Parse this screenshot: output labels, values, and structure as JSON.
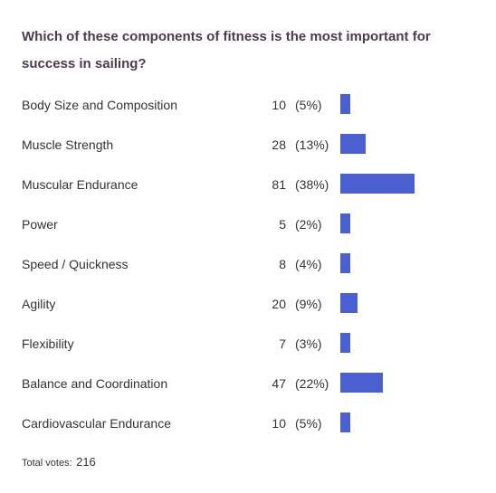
{
  "question": "Which of these components of fitness is the most important for success in sailing?",
  "bar_color": "#4a5fd0",
  "chart_data": {
    "type": "bar",
    "categories": [
      "Body Size and Composition",
      "Muscle Strength",
      "Muscular Endurance",
      "Power",
      "Speed / Quickness",
      "Agility",
      "Flexibility",
      "Balance and Coordination",
      "Cardiovascular Endurance"
    ],
    "values": [
      10,
      28,
      81,
      5,
      8,
      20,
      7,
      47,
      10
    ],
    "percent_labels": [
      "(5%)",
      "(13%)",
      "(38%)",
      "(2%)",
      "(4%)",
      "(9%)",
      "(3%)",
      "(22%)",
      "(5%)"
    ],
    "percents": [
      5,
      13,
      38,
      2,
      4,
      9,
      3,
      22,
      5
    ],
    "title": "Which of these components of fitness is the most important for success in sailing?"
  },
  "footer": {
    "label": "Total votes:",
    "total": "216"
  }
}
